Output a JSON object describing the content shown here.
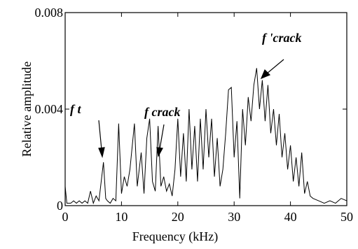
{
  "chart_data": {
    "type": "line",
    "x_label": "Frequency (kHz)",
    "y_label": "Relative amplitude",
    "annotations": [
      "f t",
      "f crack",
      "f 'crack"
    ],
    "xlim": [
      0,
      50
    ],
    "xticks": [
      0,
      10,
      20,
      30,
      40,
      50
    ],
    "ylim": [
      0,
      0.008
    ],
    "yticks": [
      0,
      0.004,
      0.008
    ],
    "series": [
      {
        "color": "#000000",
        "x": [
          0,
          0.3,
          1,
          1.5,
          2,
          2.5,
          3,
          3.5,
          4,
          4.5,
          5,
          5.5,
          6,
          6.5,
          6.8,
          7.2,
          7.5,
          8,
          8.5,
          9,
          9.5,
          10,
          10.5,
          11,
          11.5,
          12.3,
          12.8,
          13.5,
          14,
          14.5,
          15,
          15.5,
          16,
          16.5,
          17,
          17.5,
          18,
          18.5,
          19,
          19.5,
          20,
          20.5,
          21,
          21.5,
          22,
          22.5,
          23,
          23.5,
          24,
          24.5,
          25,
          25.5,
          26,
          26.5,
          27,
          27.5,
          28,
          28.5,
          29,
          29.5,
          30,
          30.5,
          31,
          31.5,
          32,
          32.5,
          33,
          33.5,
          34,
          34.5,
          35,
          35.5,
          36,
          36.5,
          37,
          37.5,
          38,
          38.5,
          39,
          39.5,
          40,
          40.5,
          41,
          41.5,
          42,
          42.5,
          43,
          43.5,
          44,
          45,
          46,
          47,
          48,
          49,
          50
        ],
        "values": [
          0.0008,
          0.0001,
          0.0001,
          0.0002,
          0.0001,
          0.0002,
          0.0001,
          0.0002,
          0.0001,
          0.0006,
          0.0001,
          0.0004,
          0.0002,
          0.0012,
          0.0018,
          0.0003,
          0.0002,
          0.0001,
          0.0003,
          0.0002,
          0.0034,
          0.0005,
          0.0012,
          0.0008,
          0.0015,
          0.0034,
          0.0008,
          0.0022,
          0.0005,
          0.0028,
          0.0036,
          0.001,
          0.0006,
          0.0033,
          0.0008,
          0.0012,
          0.0006,
          0.0009,
          0.0004,
          0.0015,
          0.0036,
          0.0012,
          0.003,
          0.001,
          0.004,
          0.0015,
          0.0033,
          0.001,
          0.0036,
          0.0015,
          0.004,
          0.002,
          0.0036,
          0.0012,
          0.0028,
          0.0008,
          0.0015,
          0.003,
          0.0048,
          0.0049,
          0.002,
          0.0035,
          0.0003,
          0.004,
          0.0025,
          0.0045,
          0.0035,
          0.005,
          0.0057,
          0.004,
          0.0052,
          0.0035,
          0.005,
          0.003,
          0.004,
          0.0025,
          0.0038,
          0.002,
          0.003,
          0.0015,
          0.0025,
          0.001,
          0.002,
          0.0008,
          0.0022,
          0.0005,
          0.001,
          0.0004,
          0.0003,
          0.0002,
          0.0001,
          0.0002,
          0.0001,
          0.0003,
          0.0002
        ]
      }
    ]
  }
}
